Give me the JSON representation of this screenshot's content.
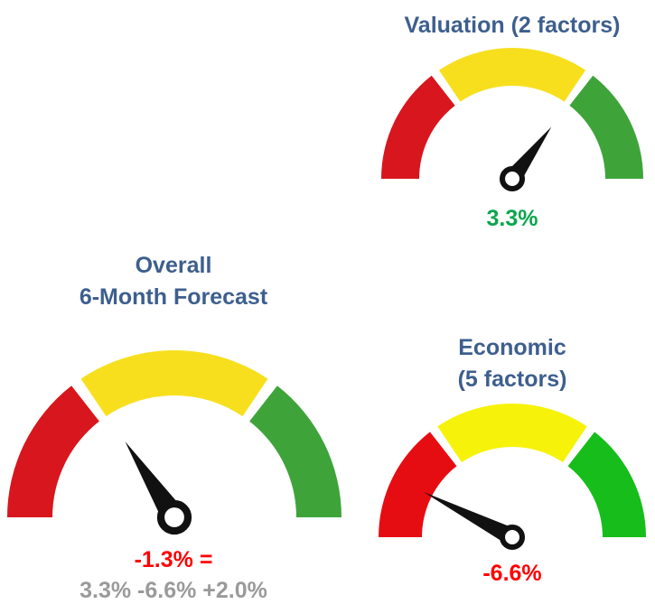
{
  "gauges": [
    {
      "title": [
        "Valuation (2 factors)"
      ],
      "value_label": "3.3%"
    },
    {
      "title": [
        "Overall",
        "6-Month Forecast"
      ],
      "value_label": "-1.3% =",
      "formula": "3.3% -6.6% +2.0%"
    },
    {
      "title": [
        "Economic",
        "(5 factors)"
      ],
      "value_label": "-6.6%"
    }
  ]
}
